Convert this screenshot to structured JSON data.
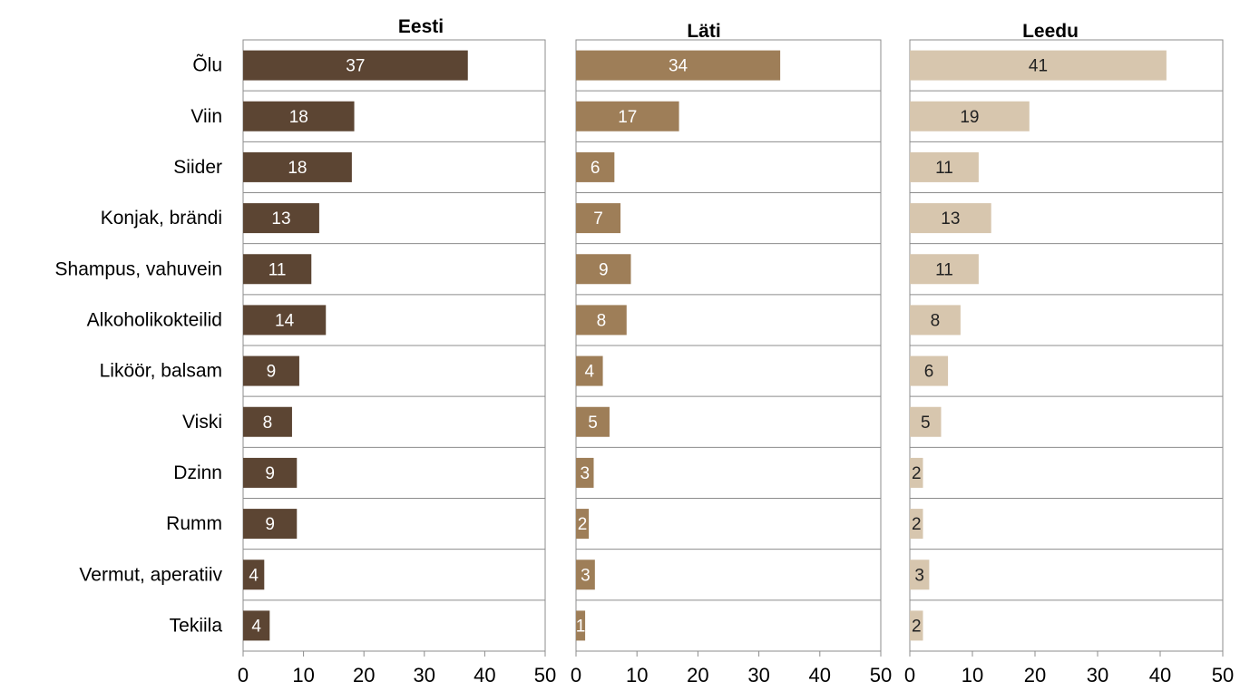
{
  "chart_data": {
    "type": "bar",
    "orientation": "horizontal",
    "categories": [
      "Õlu",
      "Viin",
      "Siider",
      "Konjak, brändi",
      "Shampus, vahuvein",
      "Alkoholikokteilid",
      "Liköör, balsam",
      "Viski",
      "Dzinn",
      "Rumm",
      "Vermut, aperatiiv",
      "Tekiila"
    ],
    "xlim": [
      0,
      50
    ],
    "x_ticks": [
      "0",
      "10",
      "20",
      "30",
      "40",
      "50"
    ],
    "grid": "horizontal lines between categories",
    "panels": [
      {
        "title": "Eesti",
        "color": "#5c4533",
        "label_color": "#ffffff",
        "values": [
          37.2,
          18.4,
          18.0,
          12.6,
          11.3,
          13.7,
          9.3,
          8.1,
          8.9,
          8.9,
          3.5,
          4.4
        ],
        "labels": [
          "37",
          "18",
          "18",
          "13",
          "11",
          "14",
          "9",
          "8",
          "9",
          "9",
          "4",
          "4"
        ]
      },
      {
        "title": "Läti",
        "color": "#9e7e58",
        "label_color": "#ffffff",
        "values": [
          33.5,
          16.9,
          6.3,
          7.3,
          9.0,
          8.3,
          4.4,
          5.5,
          2.9,
          2.1,
          3.1,
          1.5
        ],
        "labels": [
          "34",
          "17",
          "6",
          "7",
          "9",
          "8",
          "4",
          "5",
          "3",
          "2",
          "3",
          "1"
        ]
      },
      {
        "title": "Leedu",
        "color": "#d7c6ae",
        "label_color": "#222222",
        "values": [
          41.0,
          19.1,
          11.0,
          13.0,
          11.0,
          8.1,
          6.1,
          5.0,
          2.1,
          2.1,
          3.1,
          2.1
        ],
        "labels": [
          "41",
          "19",
          "11",
          "13",
          "11",
          "8",
          "6",
          "5",
          "2",
          "2",
          "3",
          "2"
        ]
      }
    ]
  }
}
